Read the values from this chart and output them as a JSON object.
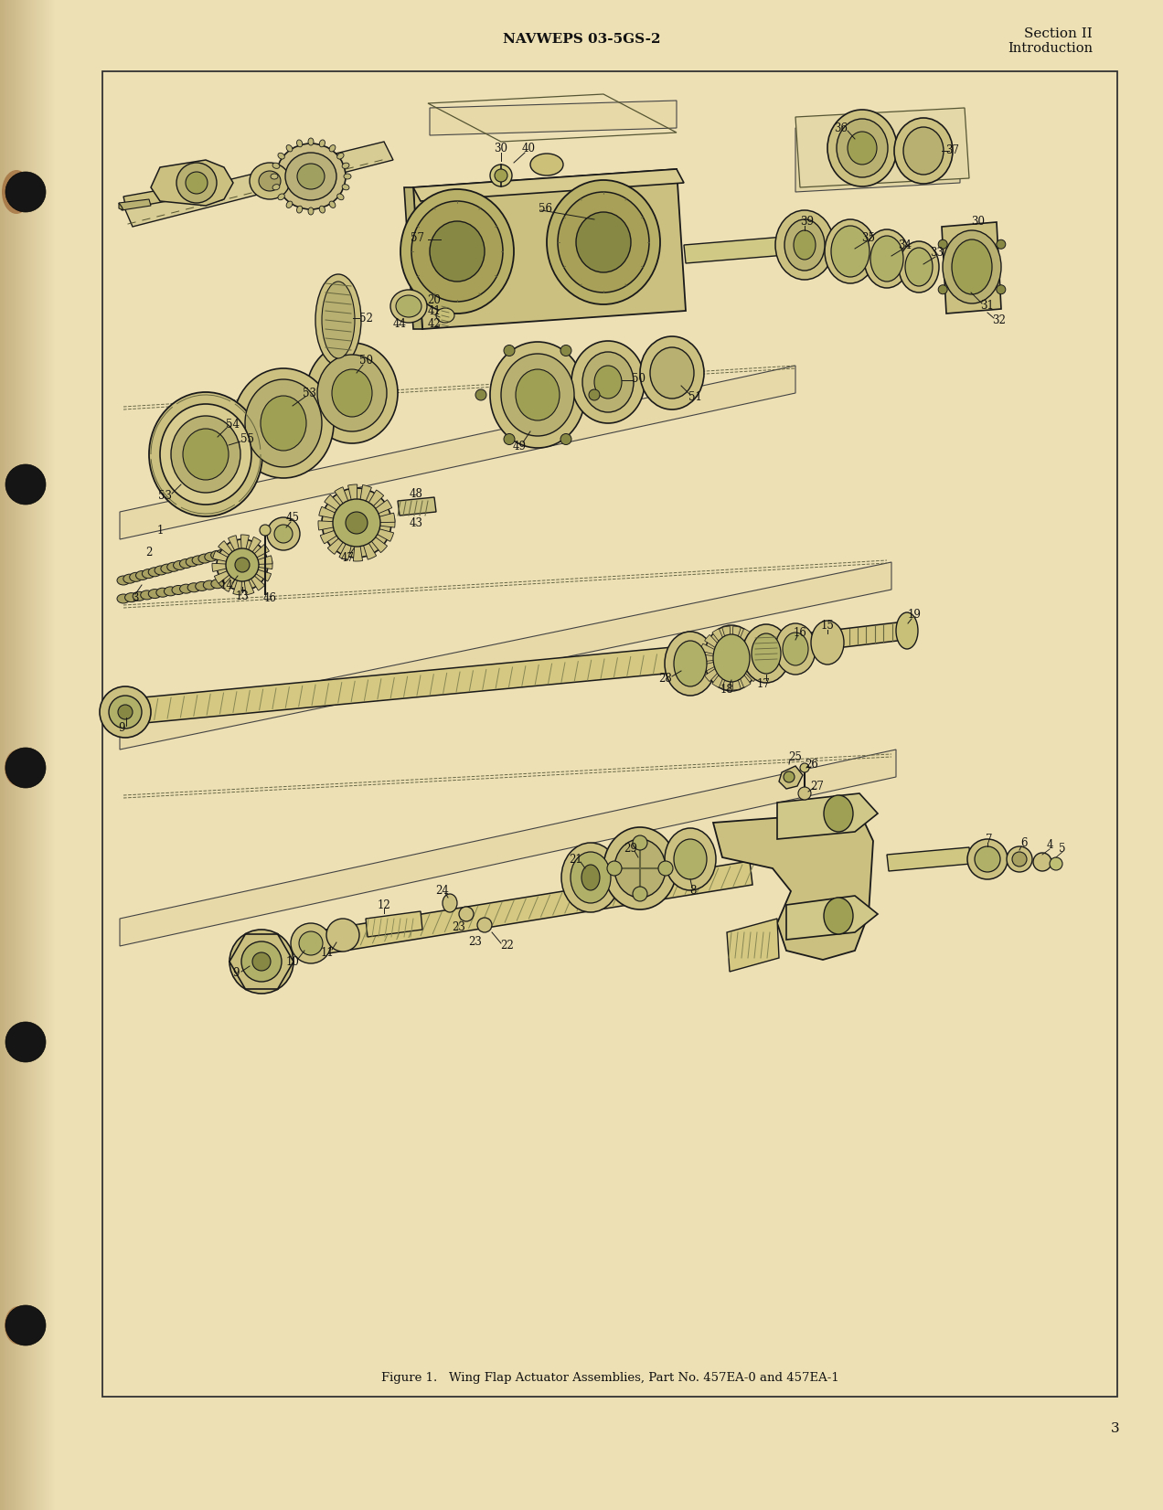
{
  "bg_outer": "#e8d9b0",
  "bg_left_strip": "#c8b480",
  "bg_left_edge": "#b8a070",
  "page_bg": "#e8ddb0",
  "border_color": "#2a2a2a",
  "text_color": "#111111",
  "drawing_color": "#1a1a1a",
  "drawing_fill": "#e0d4a0",
  "header_center": "NAVWEPS 03-5GS-2",
  "header_right_line1": "Section II",
  "header_right_line2": "Introduction",
  "footer_caption": "Figure 1.   Wing Flap Actuator Assemblies, Part No. 457EA-0 and 457EA-1",
  "page_number": "3",
  "header_fontsize": 11,
  "caption_fontsize": 9.5,
  "page_num_fontsize": 11,
  "label_fontsize": 8.5
}
